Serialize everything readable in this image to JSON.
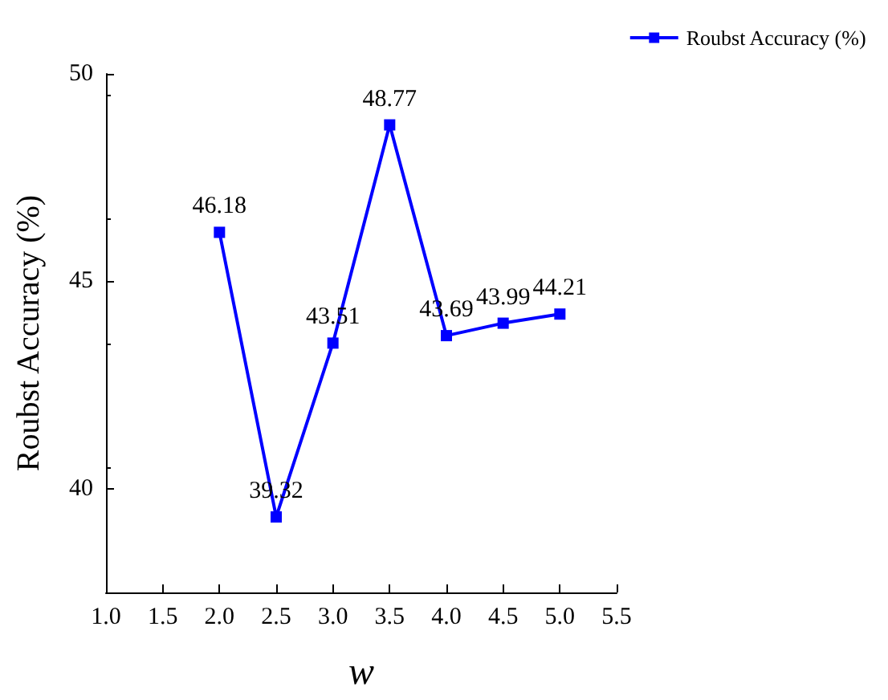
{
  "chart_data": {
    "type": "line",
    "xlabel": "w",
    "ylabel": "Roubst Accuracy (%)",
    "x": [
      2.0,
      2.5,
      3.0,
      3.5,
      4.0,
      4.5,
      5.0
    ],
    "series": [
      {
        "name": "Roubst Accuracy (%)",
        "color": "#0000ff",
        "values": [
          46.18,
          39.32,
          43.51,
          48.77,
          43.69,
          43.99,
          44.21
        ]
      }
    ],
    "xlim": [
      1.0,
      5.5
    ],
    "xticks": [
      {
        "value": 1,
        "label": "1.0"
      },
      {
        "value": 1.5,
        "label": "1.5"
      },
      {
        "value": 2,
        "label": "2.0"
      },
      {
        "value": 2.5,
        "label": "2.5"
      },
      {
        "value": 3,
        "label": "3.0"
      },
      {
        "value": 3.5,
        "label": "3.5"
      },
      {
        "value": 4,
        "label": "4.0"
      },
      {
        "value": 4.5,
        "label": "4.5"
      },
      {
        "value": 5,
        "label": "5.0"
      },
      {
        "value": 5.5,
        "label": "5.5"
      }
    ],
    "ylim": [
      37.5,
      50
    ],
    "yticks": [
      40,
      45,
      50
    ],
    "data_labels": true,
    "marker": "square",
    "line_style": "solid",
    "grid": false,
    "legend": "top right"
  }
}
